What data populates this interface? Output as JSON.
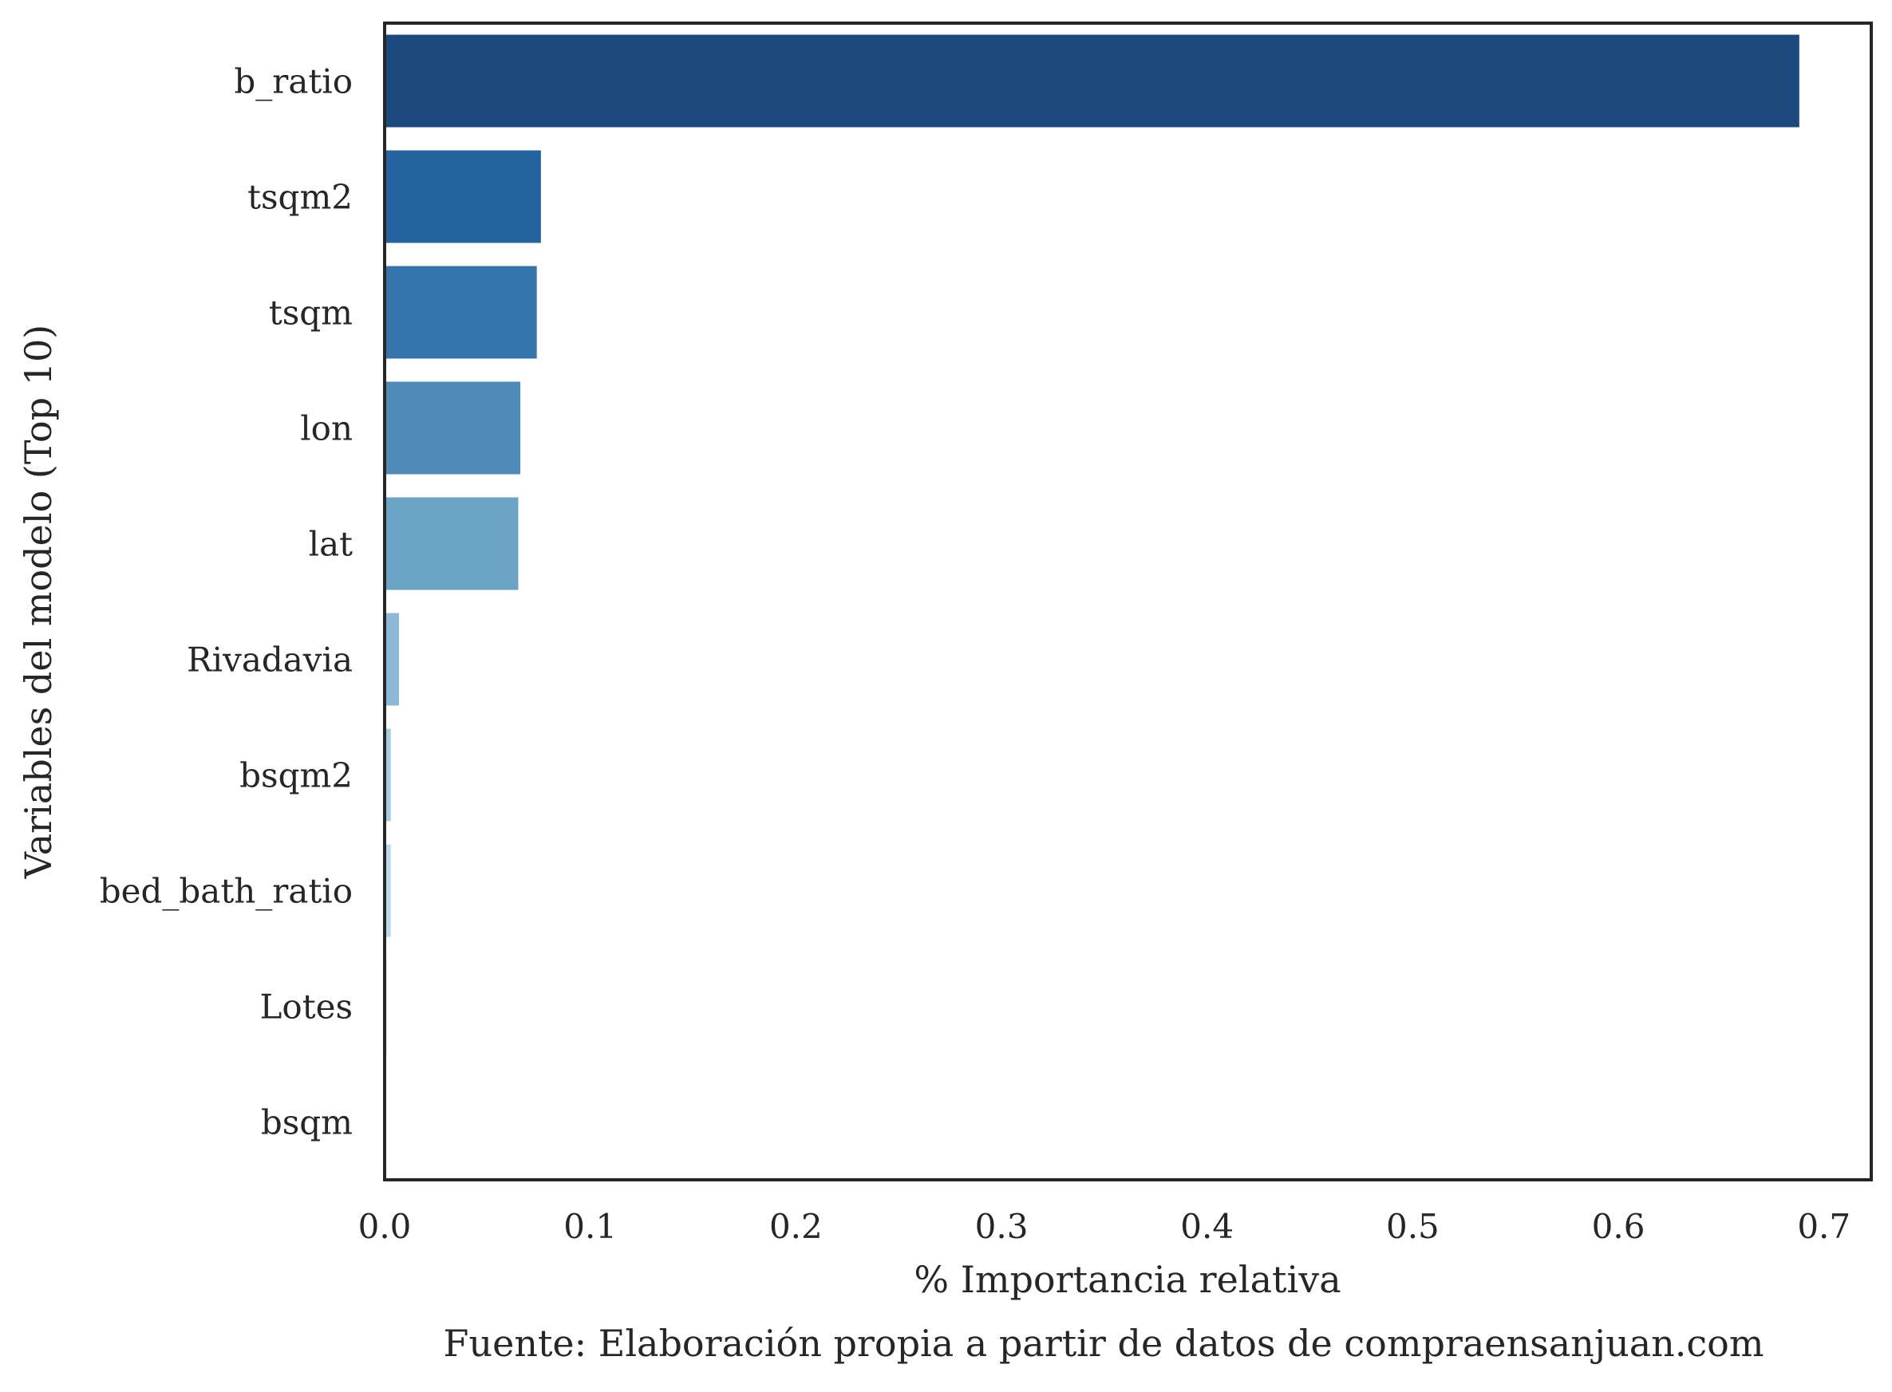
{
  "chart_data": {
    "type": "bar",
    "orientation": "horizontal",
    "categories": [
      "b_ratio",
      "tsqm2",
      "tsqm",
      "lon",
      "lat",
      "Rivadavia",
      "bsqm2",
      "bed_bath_ratio",
      "Lotes",
      "bsqm"
    ],
    "values": [
      0.688,
      0.076,
      0.074,
      0.066,
      0.065,
      0.007,
      0.003,
      0.003,
      0.001,
      0.0005
    ],
    "colors": [
      "#1c4a7e",
      "#2562a0",
      "#3574ab",
      "#4f8ab8",
      "#6ba3c6",
      "#8db8d8",
      "#a8cbe4",
      "#bcd8ec",
      "#d0e3f3",
      "#e4eff9"
    ],
    "xlabel": "% Importancia relativa",
    "ylabel": "Variables del modelo (Top 10)",
    "caption": "Fuente: Elaboración propia a partir de datos de compraensanjuan.com",
    "xlim": [
      0,
      0.723
    ],
    "xticks": [
      "0.0",
      "0.1",
      "0.2",
      "0.3",
      "0.4",
      "0.5",
      "0.6",
      "0.7"
    ],
    "grid": false
  }
}
